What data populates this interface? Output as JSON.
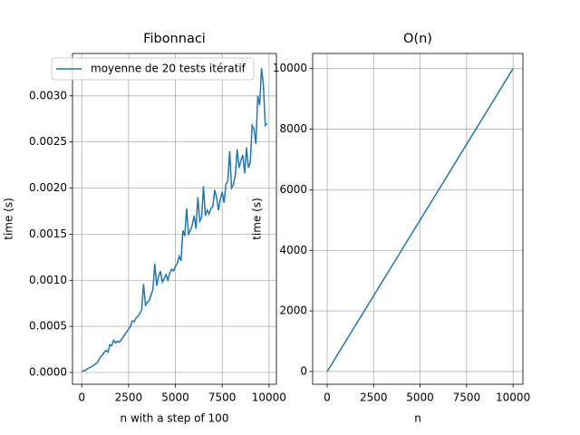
{
  "chart_data": [
    {
      "type": "line",
      "title": "Fibonnaci",
      "xlabel": "n with a step of 100",
      "ylabel": "time (s)",
      "x": [
        0,
        100,
        200,
        300,
        400,
        500,
        600,
        700,
        800,
        900,
        1000,
        1100,
        1200,
        1300,
        1400,
        1500,
        1600,
        1700,
        1800,
        1900,
        2000,
        2100,
        2200,
        2300,
        2400,
        2500,
        2600,
        2700,
        2800,
        2900,
        3000,
        3100,
        3200,
        3300,
        3400,
        3500,
        3600,
        3700,
        3800,
        3900,
        4000,
        4100,
        4200,
        4300,
        4400,
        4500,
        4600,
        4700,
        4800,
        4900,
        5000,
        5100,
        5200,
        5300,
        5400,
        5500,
        5600,
        5700,
        5800,
        5900,
        6000,
        6100,
        6200,
        6300,
        6400,
        6500,
        6600,
        6700,
        6800,
        6900,
        7000,
        7100,
        7200,
        7300,
        7400,
        7500,
        7600,
        7700,
        7800,
        7900,
        8000,
        8100,
        8200,
        8300,
        8400,
        8500,
        8600,
        8700,
        8800,
        8900,
        9000,
        9100,
        9200,
        9300,
        9400,
        9500,
        9600,
        9700,
        9800,
        9900
      ],
      "series": [
        {
          "name": "moyenne de 20 tests itératif",
          "color": "#1f77b4",
          "values": [
            1e-05,
            2e-05,
            2e-05,
            4e-05,
            5e-05,
            6e-05,
            7e-05,
            9e-05,
            0.0001,
            0.00013,
            0.00017,
            0.00019,
            0.00022,
            0.00024,
            0.00022,
            0.0003,
            0.00029,
            0.00035,
            0.00032,
            0.00034,
            0.00033,
            0.00035,
            0.00038,
            0.00041,
            0.00044,
            0.00047,
            0.0005,
            0.00056,
            0.00055,
            0.00059,
            0.00061,
            0.00064,
            0.00068,
            0.00096,
            0.00073,
            0.00076,
            0.00078,
            0.00084,
            0.0009,
            0.00118,
            0.00094,
            0.00104,
            0.0011,
            0.00098,
            0.00102,
            0.00106,
            0.001,
            0.00108,
            0.00112,
            0.0011,
            0.00115,
            0.00118,
            0.00126,
            0.00121,
            0.00154,
            0.00148,
            0.00178,
            0.0015,
            0.00154,
            0.0016,
            0.0017,
            0.00156,
            0.0019,
            0.00164,
            0.00168,
            0.00202,
            0.0017,
            0.00176,
            0.00172,
            0.00178,
            0.0018,
            0.00198,
            0.0019,
            0.00176,
            0.00188,
            0.00196,
            0.00184,
            0.00204,
            0.00208,
            0.0024,
            0.002,
            0.00204,
            0.00214,
            0.00242,
            0.00222,
            0.0023,
            0.00236,
            0.00216,
            0.00244,
            0.00222,
            0.00228,
            0.00268,
            0.00264,
            0.00248,
            0.003,
            0.0029,
            0.0033,
            0.00312,
            0.00268,
            0.0027
          ]
        }
      ],
      "xlim": [
        -495,
        10395
      ],
      "ylim": [
        -0.000128,
        0.00346
      ],
      "xticks": [
        0,
        2500,
        5000,
        7500,
        10000
      ],
      "yticks": [
        {
          "value": 0,
          "label": "0.0000"
        },
        {
          "value": 0.0005,
          "label": "0.0005"
        },
        {
          "value": 0.001,
          "label": "0.0010"
        },
        {
          "value": 0.0015,
          "label": "0.0015"
        },
        {
          "value": 0.002,
          "label": "0.0020"
        },
        {
          "value": 0.0025,
          "label": "0.0025"
        },
        {
          "value": 0.003,
          "label": "0.0030"
        }
      ],
      "grid": true,
      "legend": "upper left"
    },
    {
      "type": "line",
      "title": "O(n)",
      "xlabel": "n",
      "ylabel": "time (s)",
      "x": [
        0,
        10000
      ],
      "series": [
        {
          "color": "#1f77b4",
          "values": [
            0,
            10000
          ]
        }
      ],
      "xlim": [
        -780,
        10530
      ],
      "ylim": [
        -420,
        10500
      ],
      "xticks": [
        0,
        2500,
        5000,
        7500,
        10000
      ],
      "yticks": [
        0,
        2000,
        4000,
        6000,
        8000,
        10000
      ],
      "grid": true
    }
  ]
}
